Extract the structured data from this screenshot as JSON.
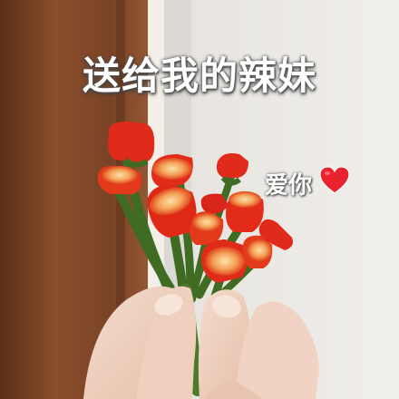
{
  "caption": "送给我的辣妹",
  "sticker_text": "爱你",
  "sticker_emoji": "heart-emoji",
  "colors": {
    "wall": "#ece9e4",
    "door": "#7a4326",
    "chili_red": "#e02a1a",
    "stem_green": "#3f6b22",
    "caption_text": "#ffffff",
    "heart": "#e8232e"
  }
}
